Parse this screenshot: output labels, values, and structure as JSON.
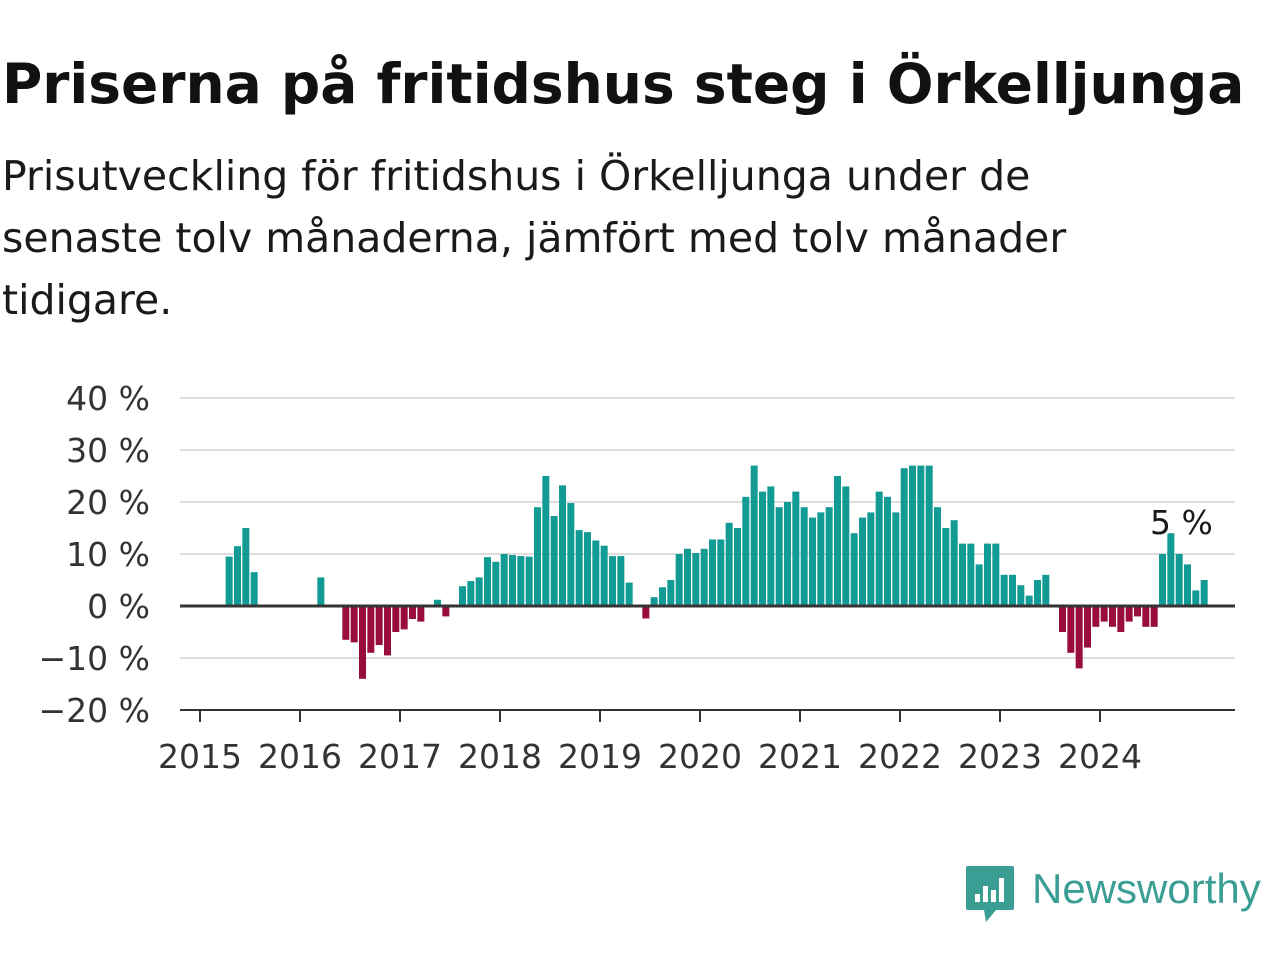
{
  "header": {
    "title": "Priserna på fritidshus steg i Örkelljunga",
    "subtitle": "Prisutveckling för fritidshus i Örkelljunga under de senaste tolv månaderna, jämfört med tolv månader tidigare."
  },
  "brand": {
    "name": "Newsworthy",
    "color": "#3a9e94"
  },
  "colors": {
    "positive": "#129b94",
    "negative": "#990d3d",
    "grid": "#dddddd",
    "axis": "#333333",
    "zero_line": "#333333"
  },
  "chart_data": {
    "type": "bar",
    "y_unit": "%",
    "ylim": [
      -20,
      40
    ],
    "y_ticks": [
      {
        "value": 40,
        "label": "40 %"
      },
      {
        "value": 30,
        "label": "30 %"
      },
      {
        "value": 20,
        "label": "20 %"
      },
      {
        "value": 10,
        "label": "10 %"
      },
      {
        "value": 0,
        "label": "0 %"
      },
      {
        "value": -10,
        "label": "−10 %"
      },
      {
        "value": -20,
        "label": "−20 %"
      }
    ],
    "x_ticks": [
      "2015",
      "2016",
      "2017",
      "2018",
      "2019",
      "2020",
      "2021",
      "2022",
      "2023",
      "2024"
    ],
    "x_start": "2015-01",
    "series": [
      {
        "values": [
          null,
          null,
          null,
          9.5,
          11.5,
          15,
          6.5,
          null,
          null,
          null,
          null,
          null,
          null,
          null,
          5.5,
          null,
          null,
          -6.5,
          -7,
          -14,
          -9,
          -7.5,
          -9.5,
          -5,
          -4.5,
          -2.5,
          -3,
          null,
          1.2,
          -2,
          null,
          3.8,
          4.8,
          5.5,
          9.4,
          8.5,
          10,
          9.8,
          9.6,
          9.5,
          19,
          25,
          17.3,
          23.2,
          19.8,
          14.6,
          14.2,
          12.6,
          11.6,
          9.6,
          9.6,
          4.5,
          null,
          -2.4,
          1.7,
          3.6,
          5,
          10,
          11,
          10.2,
          11,
          12.8,
          12.8,
          16,
          15,
          21,
          27,
          22,
          23,
          19,
          20,
          22,
          19,
          17,
          18,
          19,
          25,
          23,
          14,
          17,
          18,
          22,
          21,
          18,
          26.5,
          27,
          27,
          27,
          19,
          15,
          16.5,
          12,
          12,
          8,
          12,
          12,
          6,
          6,
          4,
          2,
          5,
          6,
          null,
          -5,
          -9,
          -12,
          -8,
          -4,
          -3,
          -4,
          -5,
          -3,
          -2,
          -4,
          -4,
          10,
          14,
          10,
          8,
          3,
          5
        ]
      }
    ],
    "last_value_label": "5 %",
    "last_value": 5
  }
}
